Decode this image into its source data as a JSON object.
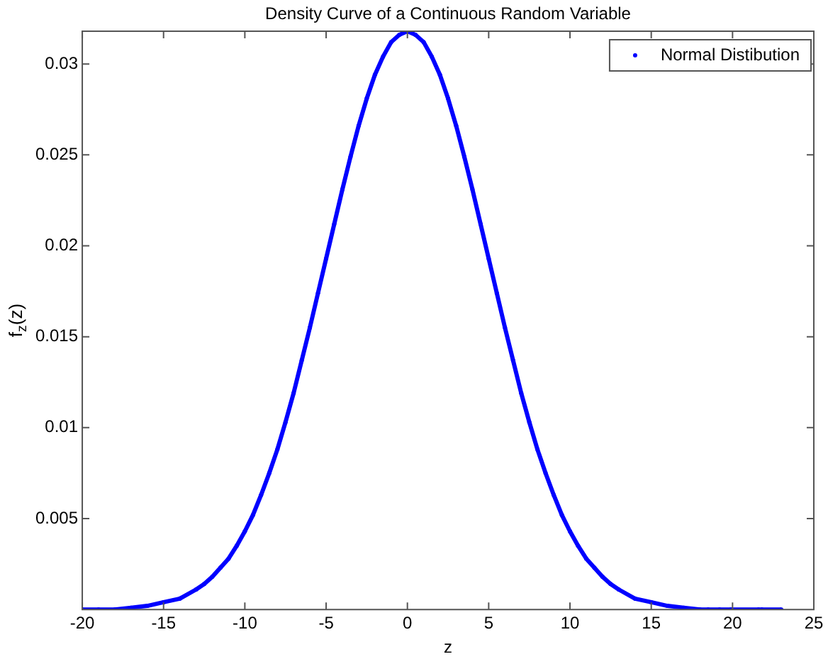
{
  "chart_data": {
    "type": "line",
    "title": "Density Curve of a Continuous Random Variable",
    "xlabel": "z",
    "ylabel": "f$_{z}$(z)",
    "x": [
      -20,
      -19,
      -18,
      -17,
      -16,
      -15,
      -14,
      -13,
      -12.5,
      -12,
      -11.5,
      -11,
      -10.5,
      -10,
      -9.5,
      -9,
      -8.5,
      -8,
      -7.5,
      -7,
      -6.5,
      -6,
      -5.5,
      -5,
      -4.5,
      -4,
      -3.5,
      -3,
      -2.5,
      -2,
      -1.5,
      -1,
      -0.5,
      0,
      0.5,
      1,
      1.5,
      2,
      2.5,
      3,
      3.5,
      4,
      4.5,
      5,
      5.5,
      6,
      6.5,
      7,
      7.5,
      8,
      8.5,
      9,
      9.5,
      10,
      10.5,
      11,
      11.5,
      12,
      12.5,
      13,
      14,
      15,
      16,
      17,
      18,
      18.5,
      19.2,
      19.9,
      21.6,
      21.8,
      23
    ],
    "series": [
      {
        "name": "Normal Distibution",
        "color": "#0000ff",
        "values": [
          0,
          0,
          0,
          0.0001,
          0.0002,
          0.0004,
          0.0006,
          0.0011,
          0.0014,
          0.0018,
          0.0023,
          0.0028,
          0.0035,
          0.0043,
          0.0052,
          0.0063,
          0.0075,
          0.0088,
          0.0103,
          0.0119,
          0.0137,
          0.0155,
          0.0174,
          0.0193,
          0.0212,
          0.0231,
          0.0249,
          0.0266,
          0.0281,
          0.0294,
          0.0304,
          0.0312,
          0.0316,
          0.0318,
          0.0316,
          0.0312,
          0.0304,
          0.0294,
          0.0281,
          0.0266,
          0.0249,
          0.0231,
          0.0212,
          0.0193,
          0.0174,
          0.0155,
          0.0137,
          0.0119,
          0.0103,
          0.0088,
          0.0075,
          0.0063,
          0.0052,
          0.0043,
          0.0035,
          0.0028,
          0.0023,
          0.0018,
          0.0014,
          0.0011,
          0.0006,
          0.0004,
          0.0002,
          0.0001,
          0,
          0,
          0,
          0,
          0,
          0,
          0
        ]
      }
    ],
    "xlim": [
      -20,
      25
    ],
    "xticks": [
      -20,
      -15,
      -10,
      -5,
      0,
      5,
      10,
      15,
      20,
      25
    ],
    "ylim": [
      0,
      0.0318
    ],
    "yticks": [
      0.005,
      0.01,
      0.015,
      0.02,
      0.025,
      0.03
    ],
    "marker": "circle",
    "legend": "top right"
  }
}
